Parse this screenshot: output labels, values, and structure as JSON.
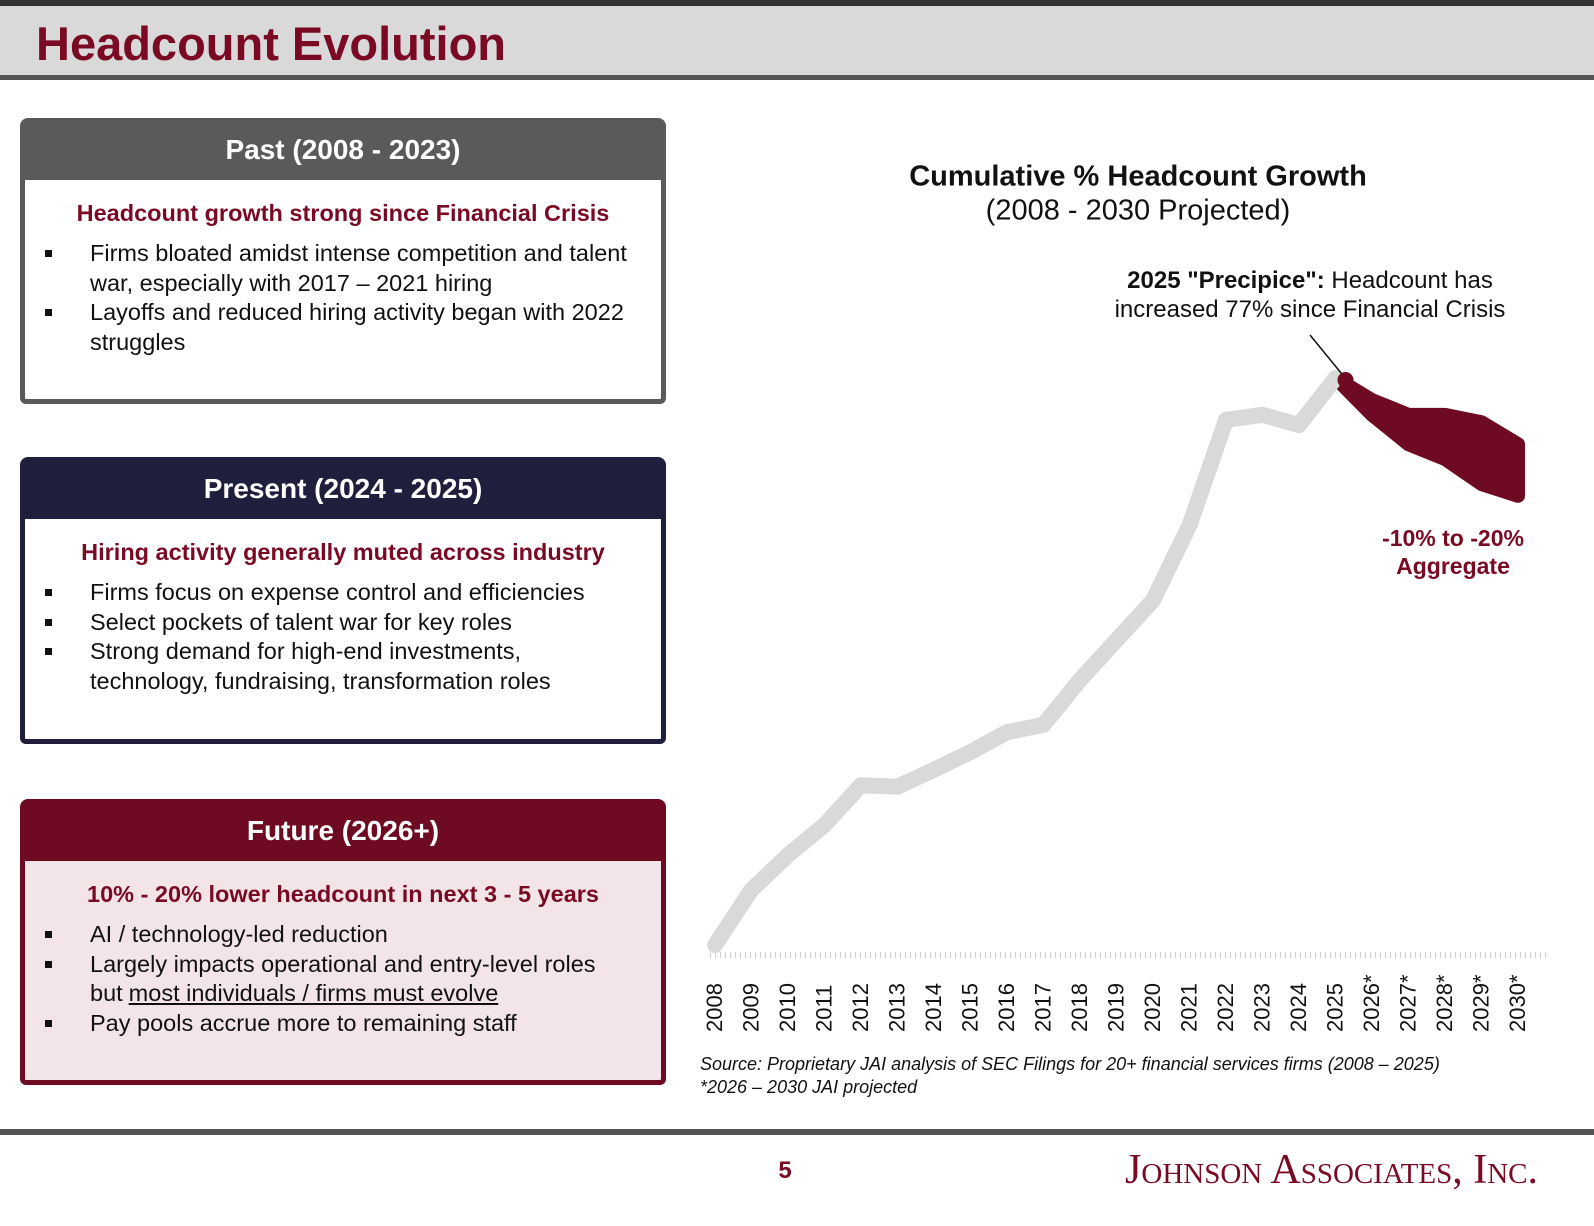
{
  "header": {
    "title": "Headcount Evolution"
  },
  "panels": [
    {
      "title": "Past (2008 - 2023)",
      "subtitle": "Headcount growth strong since Financial Crisis",
      "bullets": [
        "Firms bloated amidst intense competition and talent war, especially with 2017 – 2021 hiring",
        "Layoffs and reduced hiring activity began with 2022 struggles"
      ]
    },
    {
      "title": "Present (2024 - 2025)",
      "subtitle": "Hiring activity generally muted across industry",
      "bullets": [
        "Firms focus on expense control and efficiencies",
        "Select pockets of talent war for key roles",
        "Strong demand for high-end investments, technology, fundraising, transformation roles"
      ]
    },
    {
      "title": "Future (2026+)",
      "subtitle": "10% - 20% lower headcount in next 3 - 5 years",
      "bullets": [
        "AI / technology-led reduction",
        {
          "text": "Largely impacts operational and entry-level roles but",
          "underlined": "most individuals / firms must evolve"
        },
        "Pay pools accrue more to remaining staff"
      ]
    }
  ],
  "chart_data": {
    "type": "line",
    "title": "Cumulative % Headcount Growth",
    "subtitle": "(2008 - 2030 Projected)",
    "categories": [
      "2008",
      "2009",
      "2010",
      "2011",
      "2012",
      "2013",
      "2014",
      "2015",
      "2016",
      "2017",
      "2018",
      "2019",
      "2020",
      "2021",
      "2022",
      "2023",
      "2024",
      "2025",
      "2026*",
      "2027*",
      "2028*",
      "2029*",
      "2030*"
    ],
    "series": [
      {
        "color": "#d9d9d9",
        "values": [
          0,
          7.5,
          12.2,
          16.3,
          21.7,
          21.5,
          23.8,
          26.2,
          28.9,
          29.9,
          36,
          41.4,
          46.8,
          57,
          71.3,
          72,
          70.6,
          77,
          null,
          null,
          null,
          null,
          null
        ]
      }
    ],
    "band": {
      "color": "#6e0a22",
      "upper": [
        null,
        null,
        null,
        null,
        null,
        null,
        null,
        null,
        null,
        null,
        null,
        null,
        null,
        null,
        null,
        null,
        null,
        77,
        74,
        72,
        72,
        71,
        68
      ],
      "lower": [
        null,
        null,
        null,
        null,
        null,
        null,
        null,
        null,
        null,
        null,
        null,
        null,
        null,
        null,
        null,
        null,
        null,
        77,
        72,
        68,
        66,
        62.6,
        61
      ]
    },
    "annotation": {
      "bold": "2025 \"Precipice\":",
      "text": "Headcount has increased 77% since Financial Crisis"
    },
    "band_label": [
      "-10% to -20%",
      "Aggregate"
    ],
    "notes": [
      "Source: Proprietary JAI analysis of SEC Filings for 20+ financial services firms (2008 – 2025)",
      "*2026 – 2030 JAI projected"
    ]
  },
  "footer": {
    "page": "5",
    "company": "Johnson Associates, Inc."
  }
}
